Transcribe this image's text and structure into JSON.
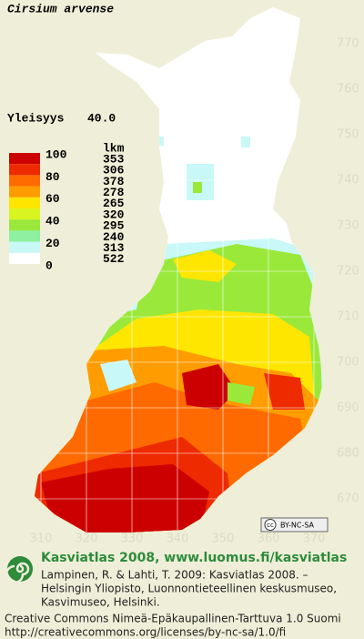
{
  "title": "Cirsium arvense",
  "frequency": {
    "label": "Yleisyys",
    "value": "40.0"
  },
  "legend": {
    "scale_labels": [
      100,
      80,
      60,
      40,
      20,
      0
    ],
    "count_header": "lkm",
    "colors": [
      "#cc0000",
      "#ee2a00",
      "#ff6a00",
      "#ff9c00",
      "#ffe600",
      "#d8f520",
      "#9ae83a",
      "#8ef0a0",
      "#c8f8f8",
      "#ffffff"
    ],
    "counts": [
      353,
      306,
      378,
      278,
      265,
      320,
      295,
      240,
      313,
      522
    ]
  },
  "map": {
    "northing_labels": [
      770,
      760,
      750,
      740,
      730,
      720,
      710,
      700,
      690,
      680,
      670
    ],
    "easting_labels": [
      310,
      320,
      330,
      340,
      350,
      360,
      370
    ],
    "badge": "BY-NC-SA"
  },
  "footer": {
    "heading": "Kasviatlas 2008, www.luomus.fi/kasviatlas",
    "citation": [
      "Lampinen, R. & Lahti, T. 2009: Kasviatlas 2008. –",
      "Helsingin Yliopisto, Luonnontieteellinen keskusmuseo,",
      "Kasvimuseo, Helsinki."
    ],
    "license": [
      "Creative Commons Nimeä-Epäkaupallinen-Tarttuva 1.0 Suomi",
      "http://creativecommons.org/licenses/by-nc-sa/1.0/fi"
    ]
  }
}
